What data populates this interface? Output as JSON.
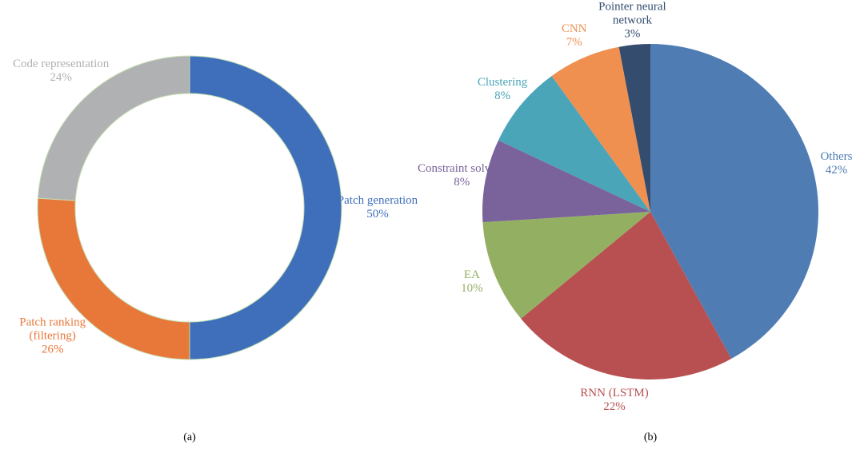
{
  "chart_data": [
    {
      "type": "pie",
      "donut": true,
      "caption": "(a)",
      "categories": [
        "Patch generation",
        "Patch ranking (filtering)",
        "Code representation"
      ],
      "values": [
        50,
        26,
        24
      ],
      "value_labels": [
        "50%",
        "26%",
        "24%"
      ],
      "colors": [
        "#3f6fba",
        "#e8773a",
        "#b0b1b3"
      ]
    },
    {
      "type": "pie",
      "donut": false,
      "caption": "(b)",
      "categories": [
        "Others",
        "RNN (LSTM)",
        "EA",
        "Constraint solving",
        "Clustering",
        "CNN",
        "Pointer neural network"
      ],
      "values": [
        42,
        22,
        10,
        8,
        8,
        7,
        3
      ],
      "value_labels": [
        "42%",
        "22%",
        "10%",
        "8%",
        "8%",
        "7%",
        "3%"
      ],
      "colors": [
        "#4f7db3",
        "#b85052",
        "#93b062",
        "#7a629b",
        "#4aa5b9",
        "#ef8f50",
        "#344c6e"
      ]
    }
  ]
}
